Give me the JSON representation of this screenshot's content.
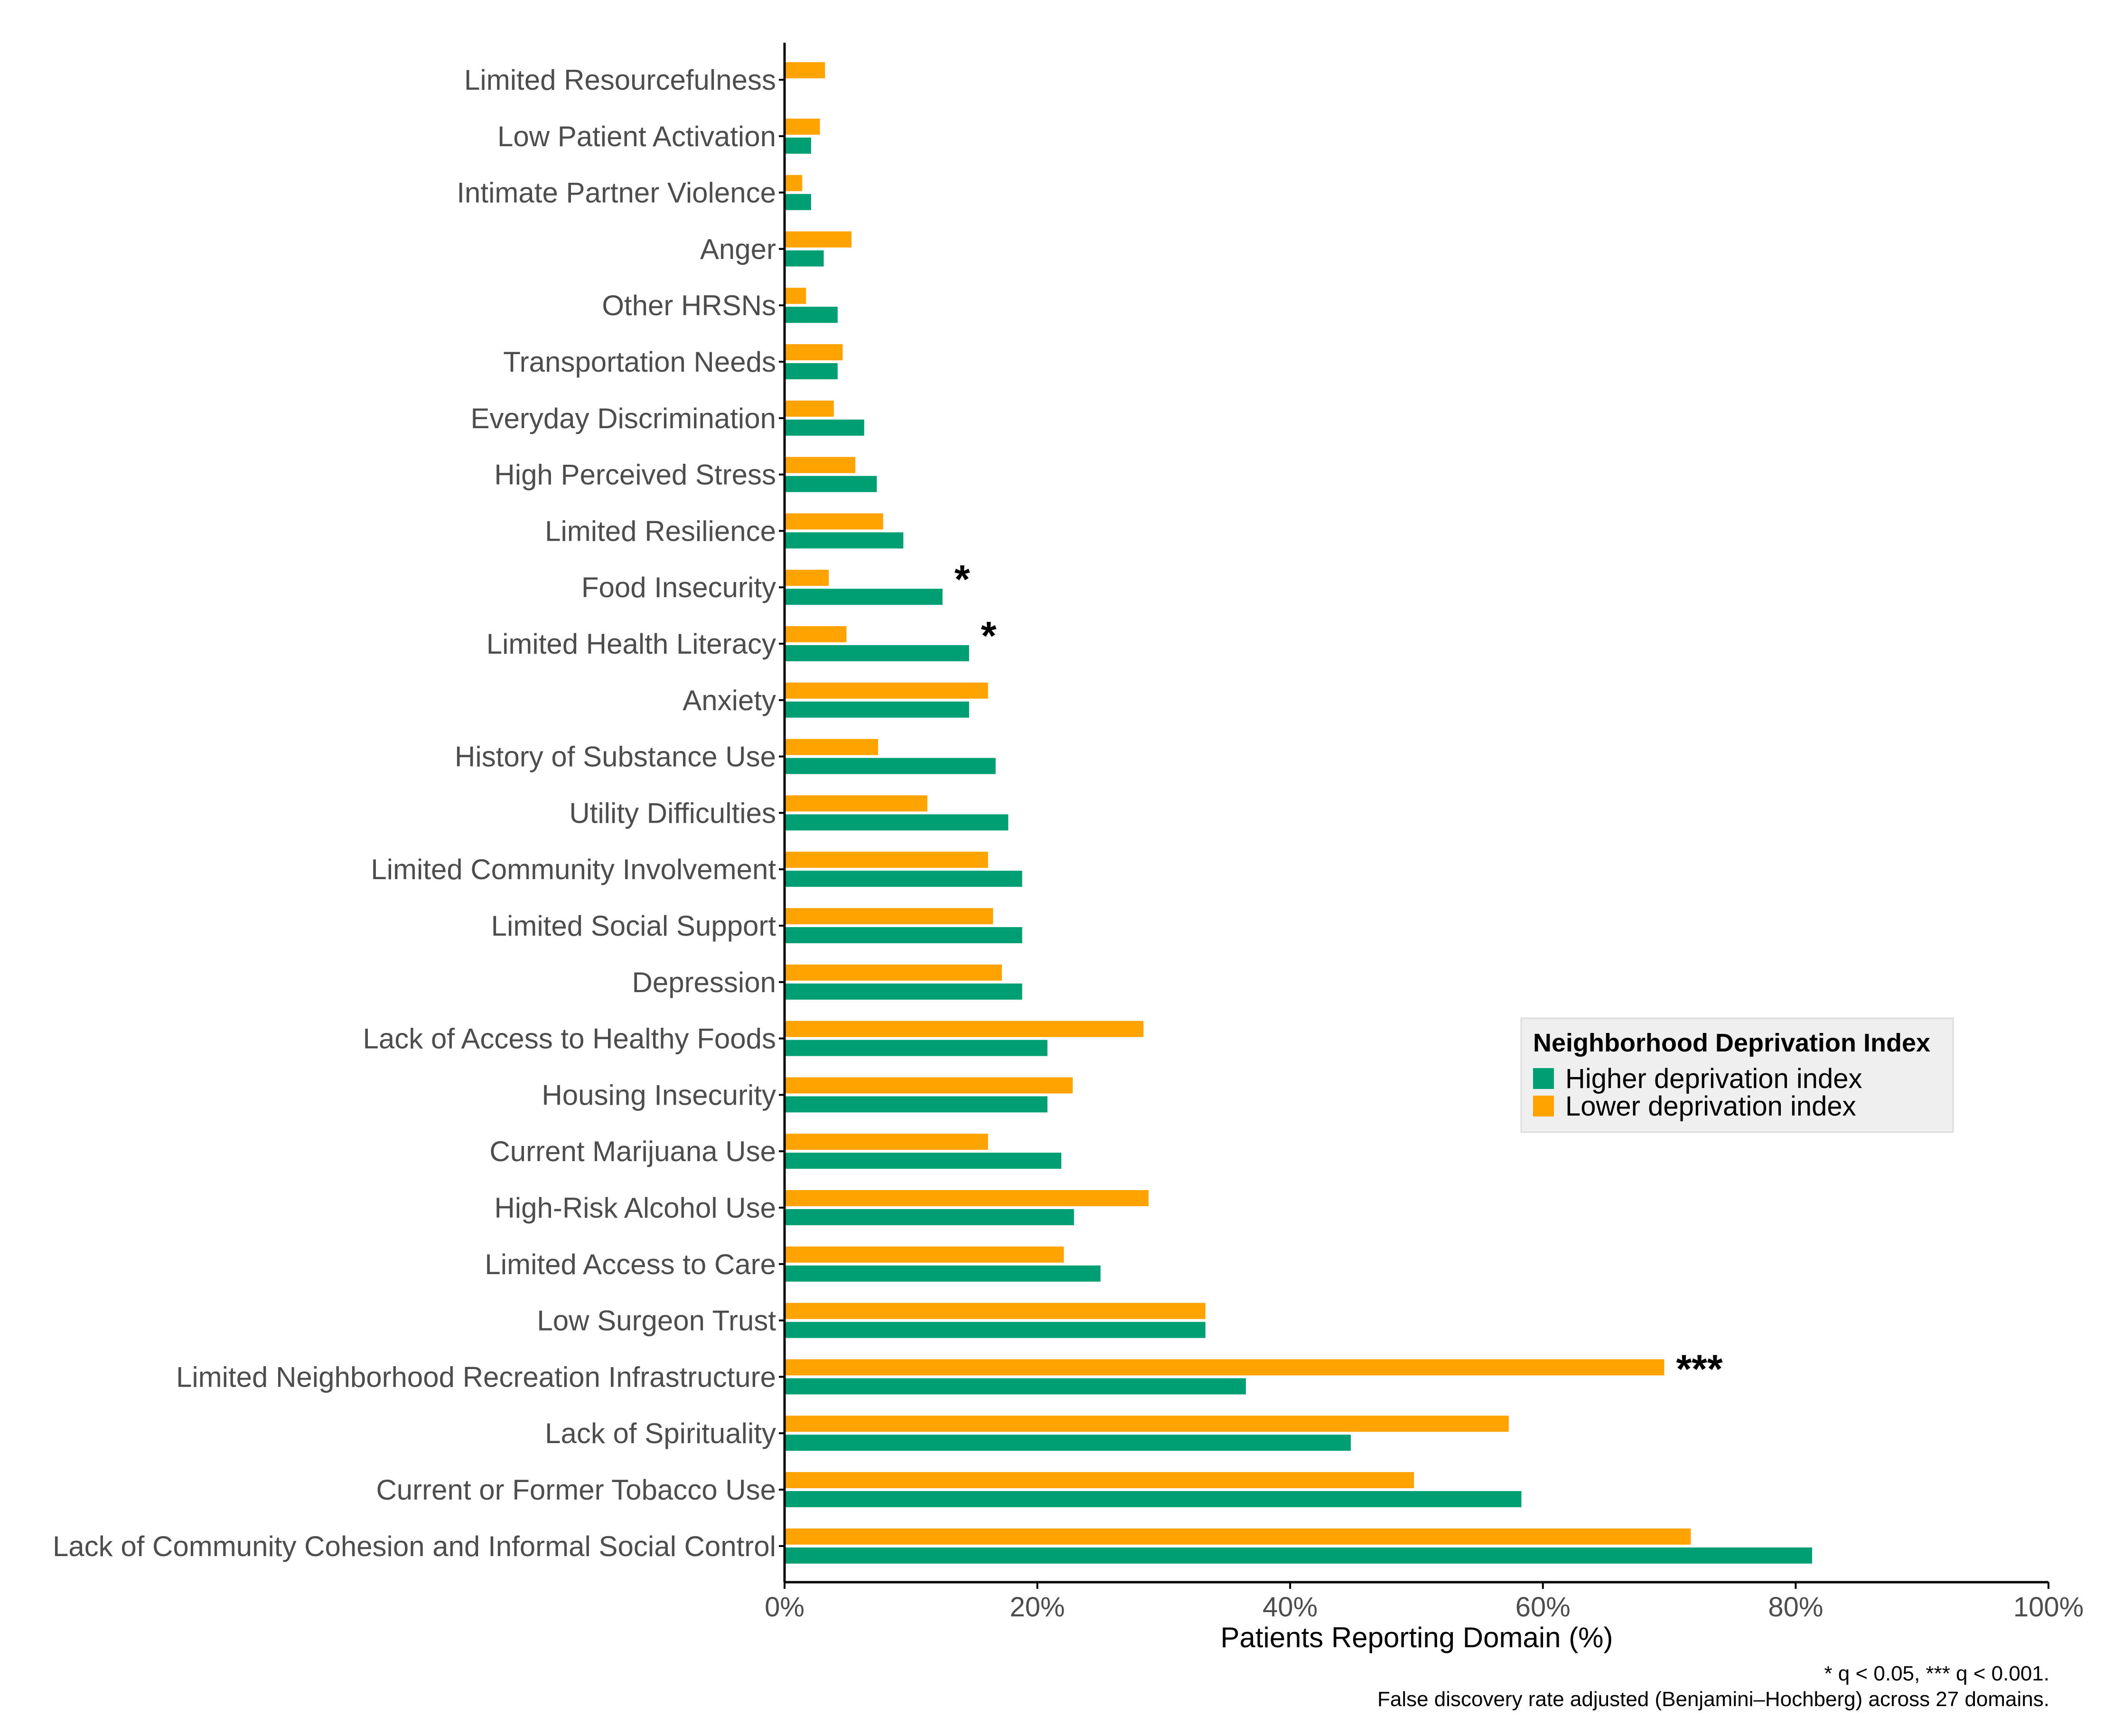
{
  "chart_data": {
    "type": "bar",
    "orientation": "horizontal",
    "title": "",
    "xlabel": "Patients Reporting Domain (%)",
    "ylabel": "",
    "xlim": [
      0,
      100
    ],
    "x_ticks": [
      "0%",
      "20%",
      "40%",
      "60%",
      "80%",
      "100%"
    ],
    "x_tick_values": [
      0,
      20,
      40,
      60,
      80,
      100
    ],
    "categories": [
      "Limited Resourcefulness",
      "Low Patient Activation",
      "Intimate Partner Violence",
      "Anger",
      "Other HRSNs",
      "Transportation Needs",
      "Everyday Discrimination",
      "High Perceived Stress",
      "Limited Resilience",
      "Food Insecurity",
      "Limited Health Literacy",
      "Anxiety",
      "History of Substance Use",
      "Utility Difficulties",
      "Limited Community Involvement",
      "Limited Social Support",
      "Depression",
      "Lack of Access to Healthy Foods",
      "Housing Insecurity",
      "Current Marijuana Use",
      "High-Risk Alcohol Use",
      "Limited Access to Care",
      "Low Surgeon Trust",
      "Limited Neighborhood Recreation Infrastructure",
      "Lack of Spirituality",
      "Current or Former Tobacco Use",
      "Lack of Community Cohesion and Informal Social Control"
    ],
    "series": [
      {
        "name": "Lower deprivation index",
        "color": "#FFA300",
        "values": [
          3.2,
          2.8,
          1.4,
          5.3,
          1.7,
          4.6,
          3.9,
          5.6,
          7.8,
          3.5,
          4.9,
          16.1,
          7.4,
          11.3,
          16.1,
          16.5,
          17.2,
          28.4,
          22.8,
          16.1,
          28.8,
          22.1,
          33.3,
          69.6,
          57.3,
          49.8,
          71.7
        ]
      },
      {
        "name": "Higher deprivation index",
        "color": "#009E73",
        "values": [
          0,
          2.1,
          2.1,
          3.1,
          4.2,
          4.2,
          6.3,
          7.3,
          9.4,
          12.5,
          14.6,
          14.6,
          16.7,
          17.7,
          18.8,
          18.8,
          18.8,
          20.8,
          20.8,
          21.9,
          22.9,
          25.0,
          33.3,
          36.5,
          44.8,
          58.3,
          81.3
        ]
      }
    ],
    "significance": [
      {
        "category": "Food Insecurity",
        "mark": "*"
      },
      {
        "category": "Limited Health Literacy",
        "mark": "*"
      },
      {
        "category": "Limited Neighborhood Recreation Infrastructure",
        "mark": "***"
      }
    ],
    "legend": {
      "title": "Neighborhood Deprivation Index",
      "position": "right",
      "items": [
        {
          "label": "Higher deprivation index",
          "color": "#009E73"
        },
        {
          "label": "Lower deprivation index",
          "color": "#FFA300"
        }
      ]
    },
    "footnotes": [
      "* q < 0.05, *** q < 0.001.",
      "False discovery rate adjusted (Benjamini–Hochberg) across 27 domains."
    ]
  }
}
